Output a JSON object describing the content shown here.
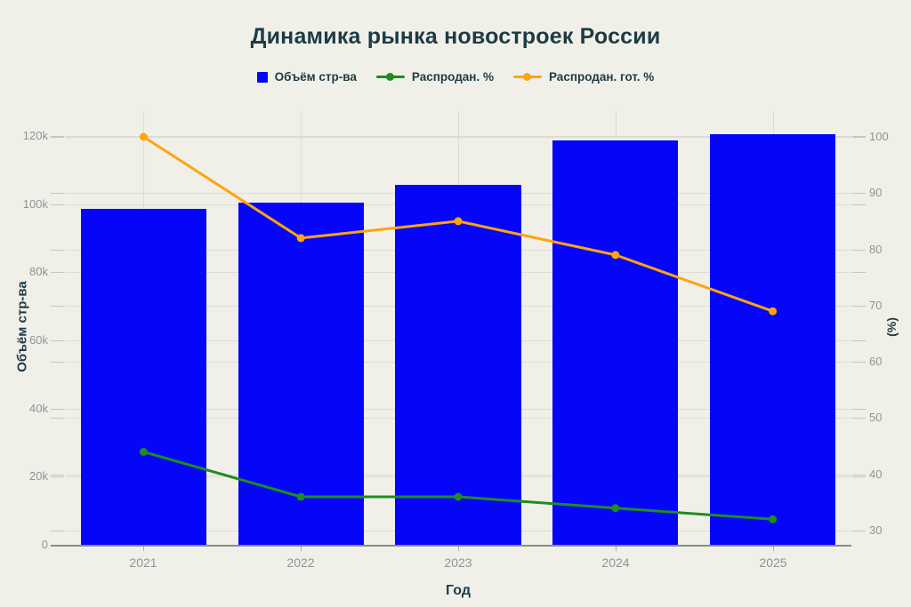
{
  "title": "Динамика рынка новостроек России",
  "legend": {
    "items": [
      {
        "label": "Объём стр-ва",
        "type": "square",
        "color": "#0505fa"
      },
      {
        "label": "Распродан. %",
        "type": "line",
        "color": "#1e8c1e"
      },
      {
        "label": "Распродан. гот. %",
        "type": "line",
        "color": "#ffa40f"
      }
    ]
  },
  "chart_data": {
    "type": "bar+line",
    "title": "Динамика рынка новостроек России",
    "xlabel": "Год",
    "ylabel_left": "Объём стр-ва",
    "ylabel_right": "(%)",
    "categories": [
      "2021",
      "2022",
      "2023",
      "2024",
      "2025"
    ],
    "series": [
      {
        "name": "Объём стр-ва",
        "type": "bar",
        "axis": "left",
        "color": "#0505fa",
        "values": [
          98600,
          100500,
          105600,
          118700,
          120500
        ]
      },
      {
        "name": "Распродан. %",
        "type": "line",
        "axis": "right",
        "color": "#1e8c1e",
        "values": [
          44,
          36,
          36,
          34,
          32
        ]
      },
      {
        "name": "Распродан. гот. %",
        "type": "line",
        "axis": "right",
        "color": "#ffa40f",
        "values": [
          100,
          82,
          85,
          79,
          69
        ]
      }
    ],
    "left_axis": {
      "tick_labels": [
        "0",
        "20k",
        "40k",
        "60k",
        "80k",
        "100k",
        "120k"
      ],
      "tick_values": [
        0,
        20000,
        40000,
        60000,
        80000,
        100000,
        120000
      ],
      "range": [
        0,
        120000
      ]
    },
    "right_axis": {
      "tick_labels": [
        "30",
        "40",
        "50",
        "60",
        "70",
        "80",
        "90",
        "100"
      ],
      "tick_values": [
        30,
        40,
        50,
        60,
        70,
        80,
        90,
        100
      ],
      "range": [
        30,
        100
      ]
    },
    "grid": "both-axes-horizontal, vertical-at-categories",
    "legend_position": "top-center",
    "colors": {
      "background": "#f0f0e9",
      "title_text": "#1e3b44",
      "tick_text": "#8f9494",
      "gridline": "#dcdcd4",
      "axis_line": "#8b8b86"
    }
  }
}
